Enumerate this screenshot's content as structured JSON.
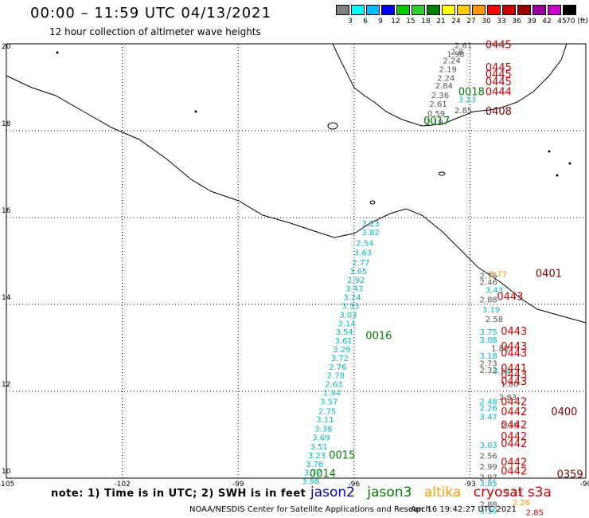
{
  "title": "00:00 – 11:59 UTC 04/13/2021",
  "subtitle": "12 hour collection of altimeter wave heights",
  "scale": {
    "labels": [
      "3",
      "6",
      "9",
      "12",
      "15",
      "18",
      "21",
      "24",
      "27",
      "30",
      "33",
      "36",
      "39",
      "42",
      "45",
      "70 (ft)"
    ],
    "colors": [
      "#7f7f7f",
      "#00ffff",
      "#00bfff",
      "#0000ff",
      "#00cc00",
      "#33cc33",
      "#008000",
      "#ffff00",
      "#ffcc00",
      "#ff9900",
      "#ff0000",
      "#cc0000",
      "#990000",
      "#990099",
      "#cc00cc",
      "#000000"
    ]
  },
  "axes": {
    "lat_labels": [
      "20",
      "18",
      "16",
      "14",
      "12",
      "10"
    ],
    "lat_values": [
      20,
      18,
      16,
      14,
      12,
      10
    ],
    "lon_labels": [
      "-105",
      "-102",
      "-99",
      "-96",
      "-93",
      "-90"
    ],
    "lon_values": [
      -105,
      -102,
      -99,
      -96,
      -93,
      -90
    ]
  },
  "map_colors": {
    "jason2": "#0000cc",
    "jason3": "#008000",
    "altika": "#ff9900",
    "cryosat": "#cc0000",
    "grey": "#555555",
    "cyan": "#00bfbf",
    "darkred": "#800000"
  },
  "tracks": [
    {
      "color": "cyan",
      "items": [
        {
          "lon": -95.8,
          "lat": 15.8,
          "label": "3.23"
        },
        {
          "lon": -95.8,
          "lat": 15.6,
          "label": "3.82"
        },
        {
          "lon": -95.95,
          "lat": 15.35,
          "label": "2.54"
        },
        {
          "lon": -96.0,
          "lat": 15.13,
          "label": "3.63"
        },
        {
          "lon": -96.05,
          "lat": 14.9,
          "label": "2.77"
        },
        {
          "lon": -96.12,
          "lat": 14.7,
          "label": "3.65"
        },
        {
          "lon": -96.18,
          "lat": 14.5,
          "label": "2.92"
        },
        {
          "lon": -96.22,
          "lat": 14.3,
          "label": "3.43"
        },
        {
          "lon": -96.28,
          "lat": 14.1,
          "label": "3.24"
        },
        {
          "lon": -96.32,
          "lat": 13.9,
          "label": "3.33"
        },
        {
          "lon": -96.38,
          "lat": 13.7,
          "label": "3.03"
        },
        {
          "lon": -96.42,
          "lat": 13.5,
          "label": "3.14"
        },
        {
          "lon": -96.48,
          "lat": 13.3,
          "label": "3.54"
        },
        {
          "lon": -96.5,
          "lat": 13.1,
          "label": "3.61"
        },
        {
          "lon": -96.55,
          "lat": 12.9,
          "label": "3.29"
        },
        {
          "lon": -96.6,
          "lat": 12.7,
          "label": "3.72"
        },
        {
          "lon": -96.65,
          "lat": 12.5,
          "label": "2.76"
        },
        {
          "lon": -96.7,
          "lat": 12.3,
          "label": "2.78"
        },
        {
          "lon": -96.75,
          "lat": 12.1,
          "label": "2.63"
        },
        {
          "lon": -96.8,
          "lat": 11.9,
          "label": "1.94"
        },
        {
          "lon": -96.88,
          "lat": 11.7,
          "label": "3.57"
        },
        {
          "lon": -96.92,
          "lat": 11.48,
          "label": "2.75"
        },
        {
          "lon": -96.98,
          "lat": 11.28,
          "label": "3.11"
        },
        {
          "lon": -97.02,
          "lat": 11.07,
          "label": "3.38"
        },
        {
          "lon": -97.08,
          "lat": 10.87,
          "label": "3.69"
        },
        {
          "lon": -97.14,
          "lat": 10.66,
          "label": "3.51"
        },
        {
          "lon": -97.19,
          "lat": 10.46,
          "label": "3.23"
        },
        {
          "lon": -97.25,
          "lat": 10.26,
          "label": "3.76"
        },
        {
          "lon": -97.3,
          "lat": 10.06,
          "label": "3.77"
        },
        {
          "lon": -97.35,
          "lat": 9.86,
          "label": "3.98"
        }
      ]
    },
    {
      "color": "grey",
      "items": [
        {
          "lon": -93.4,
          "lat": 19.9,
          "label": "2.61"
        },
        {
          "lon": -93.5,
          "lat": 19.75,
          "label": "2.8"
        },
        {
          "lon": -93.6,
          "lat": 19.7,
          "label": "1.98"
        },
        {
          "lon": -93.7,
          "lat": 19.55,
          "label": "2.24"
        },
        {
          "lon": -93.8,
          "lat": 19.35,
          "label": "2.19"
        },
        {
          "lon": -93.85,
          "lat": 19.15,
          "label": "2.24"
        },
        {
          "lon": -93.9,
          "lat": 18.97,
          "label": "2.84"
        },
        {
          "lon": -94.0,
          "lat": 18.75,
          "label": "2.36"
        },
        {
          "lon": -94.05,
          "lat": 18.55,
          "label": "2.61"
        },
        {
          "lon": -94.1,
          "lat": 18.33,
          "label": "0.59"
        },
        {
          "lon": -94.15,
          "lat": 18.13,
          "label": "2.19"
        },
        {
          "lon": -93.4,
          "lat": 18.4,
          "label": "2.85"
        }
      ]
    },
    {
      "color": "cyan",
      "items": [
        {
          "lon": -93.3,
          "lat": 18.65,
          "label": "3.23"
        }
      ]
    }
  ],
  "east_labels": [
    {
      "lon": -92.75,
      "lat": 14.6,
      "label": "2.76",
      "color": "grey"
    },
    {
      "lon": -92.75,
      "lat": 14.45,
      "label": "2.46",
      "color": "grey"
    },
    {
      "lon": -92.6,
      "lat": 14.27,
      "label": "3.43",
      "color": "cyan"
    },
    {
      "lon": -92.75,
      "lat": 14.05,
      "label": "2.88",
      "color": "grey"
    },
    {
      "lon": -92.68,
      "lat": 13.82,
      "label": "3.19",
      "color": "cyan"
    },
    {
      "lon": -92.6,
      "lat": 13.6,
      "label": "2.58",
      "color": "grey"
    },
    {
      "lon": -92.75,
      "lat": 13.3,
      "label": "3.75",
      "color": "cyan"
    },
    {
      "lon": -92.75,
      "lat": 13.12,
      "label": "3.08",
      "color": "cyan"
    },
    {
      "lon": -92.45,
      "lat": 12.93,
      "label": "1.88",
      "color": "grey"
    },
    {
      "lon": -92.75,
      "lat": 12.75,
      "label": "3.18",
      "color": "cyan"
    },
    {
      "lon": -92.75,
      "lat": 12.58,
      "label": "2.73",
      "color": "grey"
    },
    {
      "lon": -92.75,
      "lat": 12.42,
      "label": "2.32",
      "color": "grey"
    },
    {
      "lon": -92.4,
      "lat": 12.4,
      "label": "3.54",
      "color": "cyan"
    },
    {
      "lon": -92.2,
      "lat": 12.1,
      "label": "1.80",
      "color": "grey"
    },
    {
      "lon": -92.25,
      "lat": 11.8,
      "label": "2.83",
      "color": "grey"
    },
    {
      "lon": -92.75,
      "lat": 11.7,
      "label": "2.48",
      "color": "cyan"
    },
    {
      "lon": -92.75,
      "lat": 11.55,
      "label": "2.26",
      "color": "cyan"
    },
    {
      "lon": -92.75,
      "lat": 11.35,
      "label": "3.47",
      "color": "cyan"
    },
    {
      "lon": -92.2,
      "lat": 11.15,
      "label": "2.39",
      "color": "grey"
    },
    {
      "lon": -92.75,
      "lat": 10.7,
      "label": "3.03",
      "color": "cyan"
    },
    {
      "lon": -92.75,
      "lat": 10.45,
      "label": "2.56",
      "color": "grey"
    },
    {
      "lon": -92.75,
      "lat": 10.2,
      "label": "2.99",
      "color": "grey"
    },
    {
      "lon": -92.75,
      "lat": 9.95,
      "label": "2.97",
      "color": "grey"
    },
    {
      "lon": -92.75,
      "lat": 9.82,
      "label": "3.85",
      "color": "cyan"
    },
    {
      "lon": -92.1,
      "lat": 9.6,
      "label": "2.73",
      "color": "grey"
    },
    {
      "lon": -92.75,
      "lat": 9.33,
      "label": "2.88",
      "color": "grey"
    },
    {
      "lon": -92.75,
      "lat": 9.18,
      "label": "3.39",
      "color": "cyan"
    },
    {
      "lon": -92.5,
      "lat": 14.63,
      "label": "3.77",
      "color": "altika"
    },
    {
      "lon": -91.9,
      "lat": 9.38,
      "label": "2.26",
      "color": "altika"
    },
    {
      "lon": -91.55,
      "lat": 9.15,
      "label": "2.85",
      "color": "cryosat"
    }
  ],
  "passes": [
    {
      "lon": -92.6,
      "lat": 19.9,
      "label": "0445",
      "color": "cryosat"
    },
    {
      "lon": -92.6,
      "lat": 19.38,
      "label": "0445",
      "color": "cryosat"
    },
    {
      "lon": -92.6,
      "lat": 19.22,
      "label": "0445",
      "color": "cryosat"
    },
    {
      "lon": -92.6,
      "lat": 19.05,
      "label": "0445",
      "color": "cryosat"
    },
    {
      "lon": -92.6,
      "lat": 18.82,
      "label": "0444",
      "color": "cryosat"
    },
    {
      "lon": -93.3,
      "lat": 18.82,
      "label": "0018",
      "color": "jason3"
    },
    {
      "lon": -92.6,
      "lat": 18.37,
      "label": "0408",
      "color": "darkred"
    },
    {
      "lon": -94.2,
      "lat": 18.15,
      "label": "0017",
      "color": "jason3"
    },
    {
      "lon": -91.3,
      "lat": 14.63,
      "label": "0401",
      "color": "darkred"
    },
    {
      "lon": -92.3,
      "lat": 14.1,
      "label": "0443",
      "color": "cryosat"
    },
    {
      "lon": -95.7,
      "lat": 13.2,
      "label": "0016",
      "color": "jason3"
    },
    {
      "lon": -92.2,
      "lat": 13.3,
      "label": "0443",
      "color": "cryosat"
    },
    {
      "lon": -92.2,
      "lat": 12.95,
      "label": "0443",
      "color": "cryosat"
    },
    {
      "lon": -92.2,
      "lat": 12.8,
      "label": "0443",
      "color": "cryosat"
    },
    {
      "lon": -92.2,
      "lat": 12.45,
      "label": "0441",
      "color": "cryosat"
    },
    {
      "lon": -92.2,
      "lat": 12.3,
      "label": "0443",
      "color": "cryosat"
    },
    {
      "lon": -92.2,
      "lat": 12.15,
      "label": "0443",
      "color": "cryosat"
    },
    {
      "lon": -92.2,
      "lat": 11.68,
      "label": "0442",
      "color": "cryosat"
    },
    {
      "lon": -92.2,
      "lat": 11.45,
      "label": "0442",
      "color": "cryosat"
    },
    {
      "lon": -92.2,
      "lat": 11.15,
      "label": "0442",
      "color": "cryosat"
    },
    {
      "lon": -90.9,
      "lat": 11.45,
      "label": "0400",
      "color": "darkred"
    },
    {
      "lon": -92.2,
      "lat": 10.88,
      "label": "0442",
      "color": "cryosat"
    },
    {
      "lon": -92.2,
      "lat": 10.72,
      "label": "0442",
      "color": "cryosat"
    },
    {
      "lon": -96.65,
      "lat": 10.45,
      "label": "0015",
      "color": "jason3"
    },
    {
      "lon": -92.2,
      "lat": 10.28,
      "label": "0442",
      "color": "cryosat"
    },
    {
      "lon": -92.2,
      "lat": 10.08,
      "label": "0442",
      "color": "cryosat"
    },
    {
      "lon": -97.15,
      "lat": 10.03,
      "label": "0014",
      "color": "jason3"
    },
    {
      "lon": -90.75,
      "lat": 10.01,
      "label": "0359",
      "color": "darkred"
    }
  ],
  "note": "note: 1) Time is in UTC; 2) SWH is in feet",
  "legend": [
    {
      "label": "jason2",
      "color": "#0000cc"
    },
    {
      "label": "jason3",
      "color": "#008000"
    },
    {
      "label": "altika",
      "color": "#ff9900"
    },
    {
      "label": "cryosat s3a",
      "color": "#cc0000"
    }
  ],
  "credit": "NOAA/NESDIS Center for Satellite Applications and Research",
  "stamp": "Apr 16 19:42:27 UTC 2021"
}
